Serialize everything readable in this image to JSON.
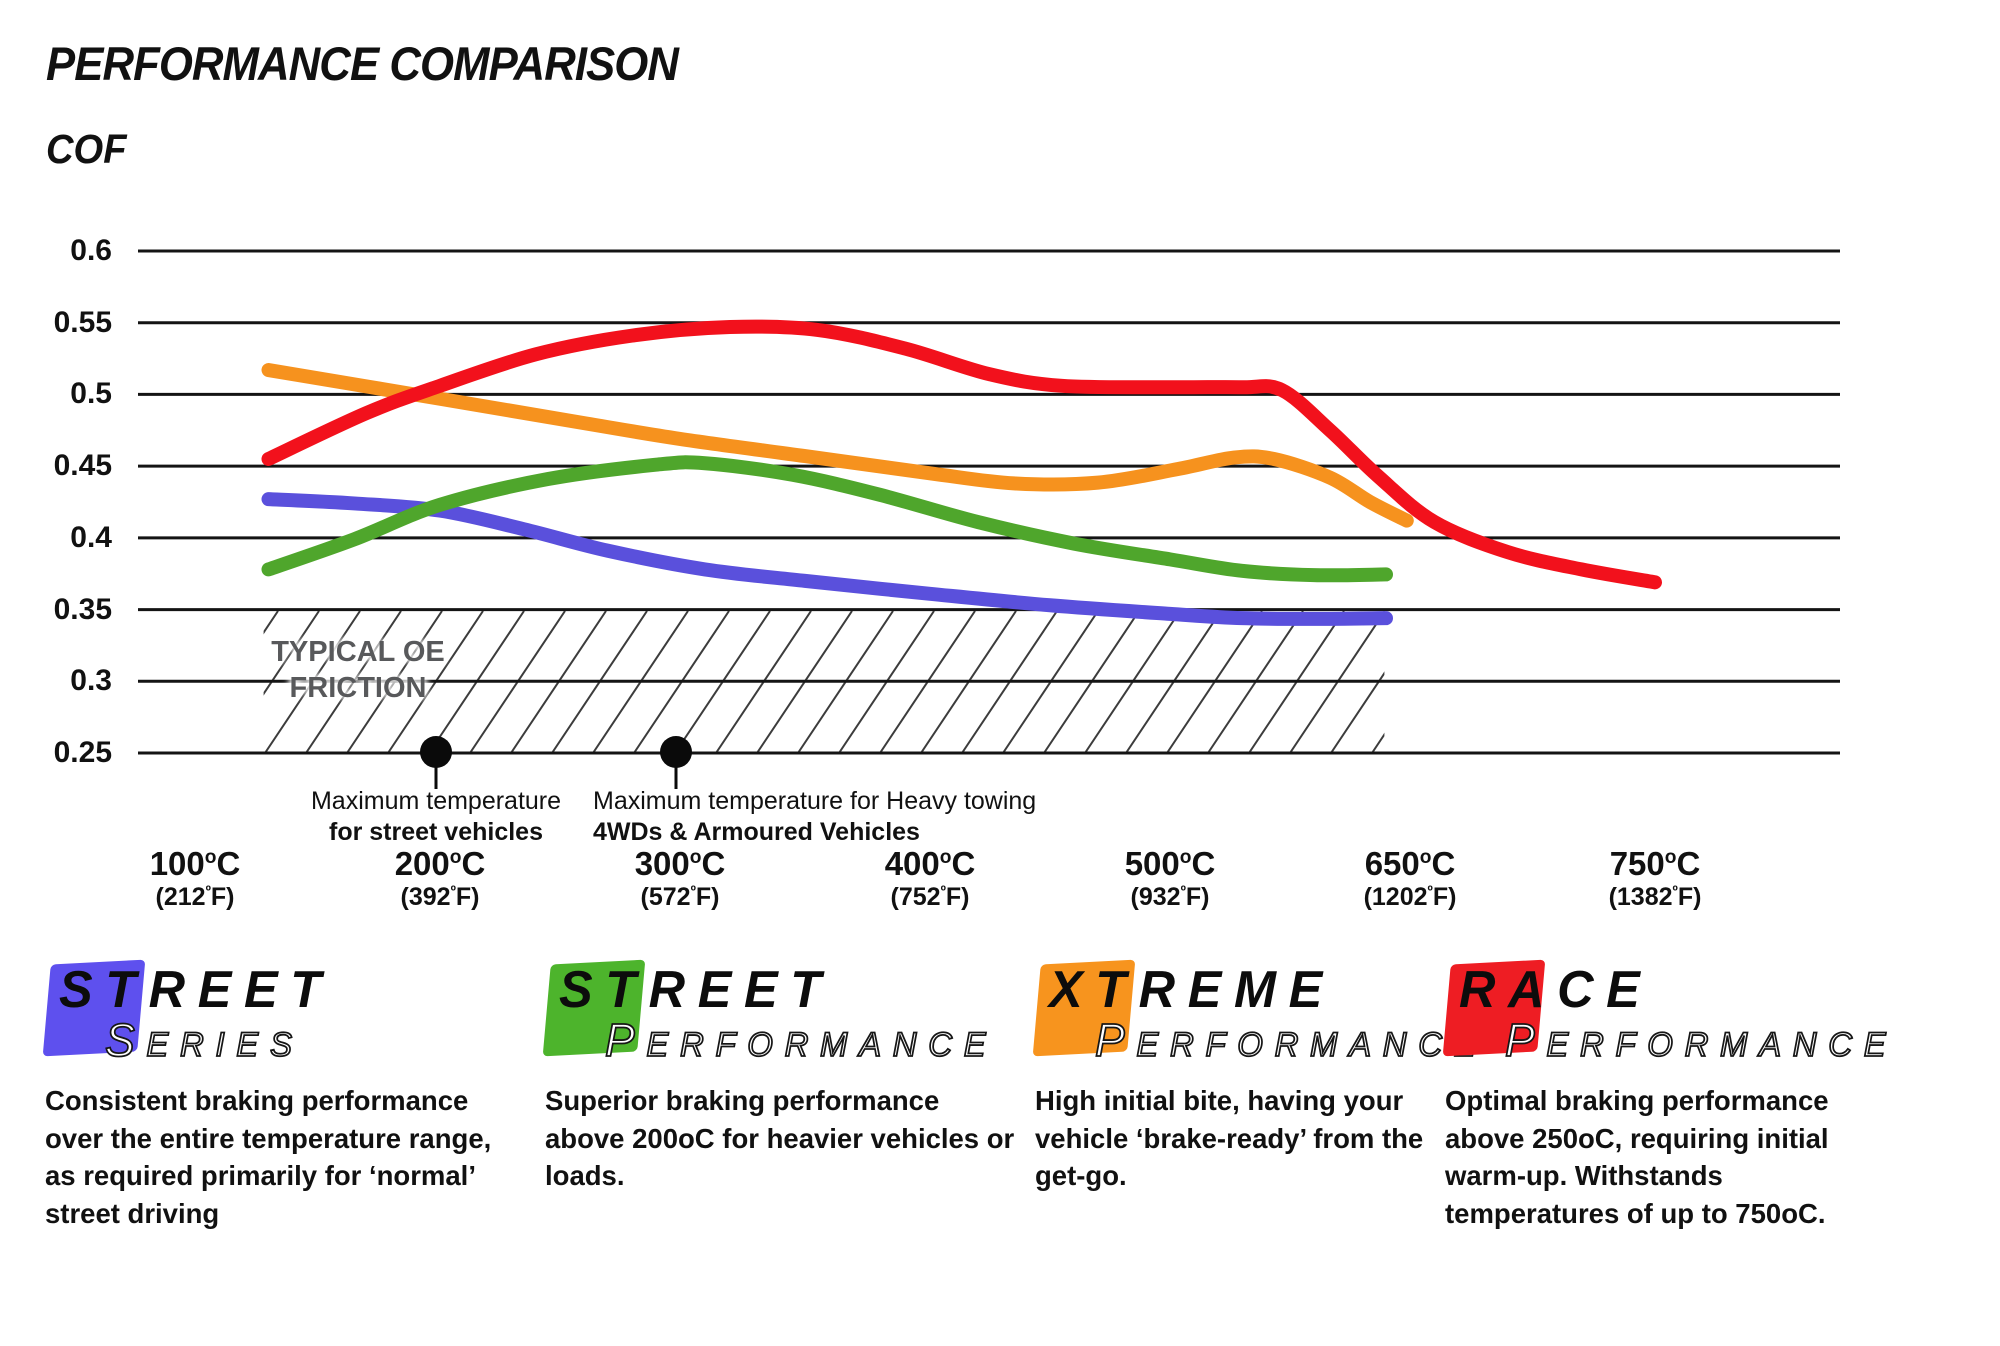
{
  "page": {
    "title": "PERFORMANCE COMPARISON",
    "y_axis_title": "COF"
  },
  "chart_data": {
    "type": "line",
    "title": "PERFORMANCE COMPARISON",
    "ylabel": "COF",
    "xlabel": "",
    "grid": true,
    "ylim": [
      0.25,
      0.6
    ],
    "y_ticks": [
      0.6,
      0.55,
      0.5,
      0.45,
      0.4,
      0.35,
      0.3,
      0.25
    ],
    "x_ticks": [
      {
        "c": 100,
        "f": 212
      },
      {
        "c": 200,
        "f": 392
      },
      {
        "c": 300,
        "f": 572
      },
      {
        "c": 400,
        "f": 752
      },
      {
        "c": 500,
        "f": 932
      },
      {
        "c": 650,
        "f": 1202
      },
      {
        "c": 750,
        "f": 1382
      }
    ],
    "oe_band": {
      "label_line1": "TYPICAL OE",
      "label_line2": "FRICTION",
      "cof_from": 0.25,
      "cof_to": 0.35,
      "temp_from": 128,
      "temp_to": 634
    },
    "annotations": [
      {
        "temp": 200,
        "align": "center",
        "label_line1": "Maximum temperature",
        "label_line2": "for street vehicles"
      },
      {
        "temp": 300,
        "align": "left",
        "label_line1": "Maximum temperature for Heavy towing",
        "label_line2": "4WDs & Armoured Vehicles"
      }
    ],
    "series": [
      {
        "name": "Street Series",
        "color": "#5a50dc",
        "points": [
          [
            130,
            0.427
          ],
          [
            165,
            0.424
          ],
          [
            200,
            0.419
          ],
          [
            235,
            0.406
          ],
          [
            270,
            0.391
          ],
          [
            310,
            0.378
          ],
          [
            350,
            0.37
          ],
          [
            400,
            0.361
          ],
          [
            450,
            0.353
          ],
          [
            500,
            0.347
          ],
          [
            545,
            0.344
          ],
          [
            590,
            0.3435
          ],
          [
            635,
            0.344
          ]
        ]
      },
      {
        "name": "Street Performance",
        "color": "#4fa62c",
        "points": [
          [
            130,
            0.378
          ],
          [
            165,
            0.399
          ],
          [
            200,
            0.423
          ],
          [
            245,
            0.441
          ],
          [
            290,
            0.451
          ],
          [
            310,
            0.452
          ],
          [
            345,
            0.444
          ],
          [
            380,
            0.43
          ],
          [
            420,
            0.411
          ],
          [
            460,
            0.396
          ],
          [
            500,
            0.385
          ],
          [
            545,
            0.377
          ],
          [
            590,
            0.374
          ],
          [
            635,
            0.3745
          ]
        ]
      },
      {
        "name": "Xtreme Performance",
        "color": "#f6921e",
        "points": [
          [
            130,
            0.517
          ],
          [
            200,
            0.497
          ],
          [
            260,
            0.48
          ],
          [
            300,
            0.469
          ],
          [
            350,
            0.457
          ],
          [
            400,
            0.445
          ],
          [
            435,
            0.438
          ],
          [
            470,
            0.4385
          ],
          [
            505,
            0.448
          ],
          [
            540,
            0.456
          ],
          [
            565,
            0.455
          ],
          [
            600,
            0.442
          ],
          [
            625,
            0.425
          ],
          [
            648,
            0.412
          ]
        ]
      },
      {
        "name": "Race Performance",
        "color": "#f2111c",
        "points": [
          [
            130,
            0.455
          ],
          [
            170,
            0.487
          ],
          [
            200,
            0.506
          ],
          [
            240,
            0.528
          ],
          [
            280,
            0.541
          ],
          [
            320,
            0.547
          ],
          [
            355,
            0.545
          ],
          [
            390,
            0.532
          ],
          [
            425,
            0.514
          ],
          [
            455,
            0.506
          ],
          [
            500,
            0.505
          ],
          [
            545,
            0.505
          ],
          [
            570,
            0.503
          ],
          [
            600,
            0.475
          ],
          [
            630,
            0.443
          ],
          [
            660,
            0.411
          ],
          [
            690,
            0.39
          ],
          [
            720,
            0.378
          ],
          [
            750,
            0.369
          ]
        ]
      }
    ]
  },
  "legend": [
    {
      "word": "STREET",
      "sub": "SERIES",
      "color": "#5e50ee",
      "description": "Consistent braking performance over the entire temperature range, as required primarily for ‘normal’ street driving"
    },
    {
      "word": "STREET",
      "sub": "PERFORMANCE",
      "color": "#4db42c",
      "description": "Superior braking performance above 200oC for heavier vehicles or loads."
    },
    {
      "word": "XTREME",
      "sub": "PERFORMANCE",
      "color": "#f7941e",
      "description": "High initial bite, having your vehicle ‘brake-ready’ from the get-go."
    },
    {
      "word": "RACE",
      "sub": "PERFORMANCE",
      "color": "#ee1d23",
      "description": "Optimal braking performance above 250oC, requiring initial warm-up. Withstands temperatures of up to 750oC."
    }
  ]
}
